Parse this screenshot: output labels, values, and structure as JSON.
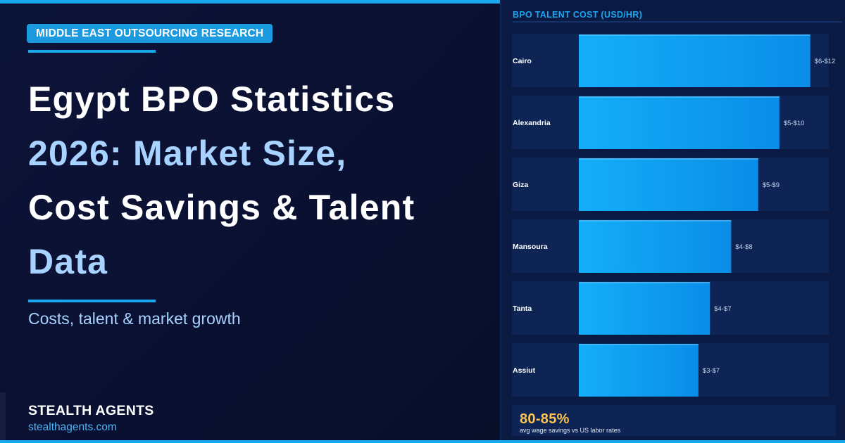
{
  "badge": "MIDDLE EAST OUTSOURCING RESEARCH",
  "headline": {
    "line1": "Egypt BPO Statistics",
    "line2": "2026: Market Size,",
    "line3": "Cost Savings & Talent",
    "line4": "Data"
  },
  "subtitle": "Costs, talent & market growth",
  "brand": {
    "name": "STEALTH AGENTS",
    "url": "stealthagents.com"
  },
  "colors": {
    "accent": "#1ba6f0",
    "headline_blue": "#a8d2ff",
    "stat_gold": "#ffc44d",
    "bar_start": "#14aef8",
    "bar_end": "#0a8de8"
  },
  "chart_data": {
    "type": "bar",
    "orientation": "horizontal",
    "title": "BPO TALENT COST (USD/HR)",
    "categories": [
      "Cairo",
      "Alexandria",
      "Giza",
      "Mansoura",
      "Tanta",
      "Assiut"
    ],
    "values": [
      12,
      10.4,
      9.3,
      7.9,
      6.8,
      6.2
    ],
    "value_labels": [
      "$6-$12",
      "$5-$10",
      "$5-$9",
      "$4-$8",
      "$4-$7",
      "$3-$7"
    ],
    "xlim": [
      0,
      13.4
    ],
    "grid": false,
    "legend": "none"
  },
  "footer_stat": {
    "value": "80-85%",
    "caption": "avg wage savings vs US labor rates"
  }
}
